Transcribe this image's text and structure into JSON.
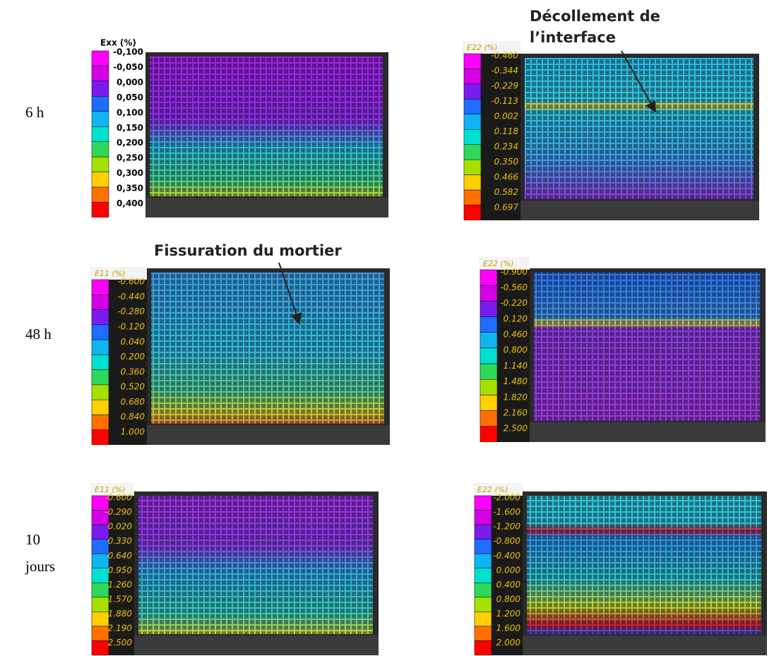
{
  "rows": [
    {
      "label": "6 h"
    },
    {
      "label": "48 h"
    },
    {
      "label": "10 jours"
    }
  ],
  "annotations": [
    {
      "text": "Décollement de l’interface"
    },
    {
      "text": "Fissuration du mortier"
    }
  ],
  "panels": [
    {
      "colorbar": {
        "title": "Exx (%)",
        "labels": [
          "-0,100",
          "-0,050",
          "0,000",
          "0,050",
          "0,100",
          "0,150",
          "0,200",
          "0,250",
          "0,300",
          "0,350",
          "0,400"
        ]
      }
    },
    {
      "colorbar": {
        "title": "E22 (%)",
        "labels": [
          "-0.460",
          "-0.344",
          "-0.229",
          "-0.113",
          "0.002",
          "0.118",
          "0.234",
          "0.350",
          "0.466",
          "0.582",
          "0.697"
        ]
      }
    },
    {
      "colorbar": {
        "title": "E11 (%)",
        "labels": [
          "-0.600",
          "-0.440",
          "-0.280",
          "-0.120",
          "0.040",
          "0.200",
          "0.360",
          "0.520",
          "0.680",
          "0.840",
          "1.000"
        ]
      }
    },
    {
      "colorbar": {
        "title": "E22 (%)",
        "labels": [
          "-0.900",
          "-0.560",
          "-0.220",
          "0.120",
          "0.460",
          "0.800",
          "1.140",
          "1.480",
          "1.820",
          "2.160",
          "2.500"
        ]
      }
    },
    {
      "colorbar": {
        "title": "E11 (%)",
        "labels": [
          "-0.600",
          "-0.290",
          "0.020",
          "0.330",
          "0.640",
          "0.950",
          "1.260",
          "1.570",
          "1.880",
          "2.190",
          "2.500"
        ]
      }
    },
    {
      "colorbar": {
        "title": "E22 (%)",
        "labels": [
          "-2.000",
          "-1.600",
          "-1.200",
          "-0.800",
          "-0.400",
          "0.000",
          "0.400",
          "0.800",
          "1.200",
          "1.600",
          "2.000"
        ]
      }
    }
  ]
}
